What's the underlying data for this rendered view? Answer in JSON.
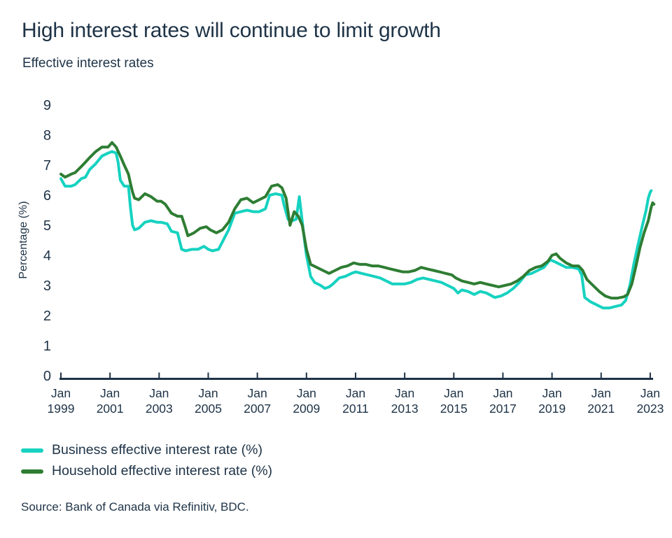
{
  "header": {
    "title": "High interest rates will continue to limit growth",
    "subtitle": "Effective interest rates"
  },
  "source": {
    "label": "Source: Bank of Canada via Refinitiv, BDC."
  },
  "legend": {
    "items": [
      {
        "label": "Business effective interest rate (%)",
        "color": "#16d2c0"
      },
      {
        "label": "Household effective interest rate (%)",
        "color": "#2e7d33"
      }
    ]
  },
  "colors": {
    "text": "#1e3347",
    "axis": "#1e3347",
    "background": "#ffffff"
  },
  "chart_data": {
    "type": "line",
    "title": "High interest rates will continue to limit growth",
    "subtitle": "Effective interest rates",
    "xlabel": "",
    "ylabel": "Percentage (%)",
    "ylim": [
      0,
      9
    ],
    "xlim_years": [
      1999.0,
      2023.3
    ],
    "grid": false,
    "legend_position": "bottom-left",
    "yticks": [
      0,
      1,
      2,
      3,
      4,
      5,
      6,
      7,
      8,
      9
    ],
    "xticks": [
      "Jan 1999",
      "Jan 2001",
      "Jan 2003",
      "Jan 2005",
      "Jan 2007",
      "Jan 2009",
      "Jan 2011",
      "Jan 2013",
      "Jan 2015",
      "Jan 2017",
      "Jan 2019",
      "Jan 2021",
      "Jan 2023"
    ],
    "series": [
      {
        "name": "Business effective interest rate (%)",
        "color": "#16d2c0",
        "points": [
          [
            1999.0,
            6.55
          ],
          [
            1999.17,
            6.3
          ],
          [
            1999.42,
            6.3
          ],
          [
            1999.58,
            6.35
          ],
          [
            1999.83,
            6.55
          ],
          [
            2000.0,
            6.6
          ],
          [
            2000.17,
            6.85
          ],
          [
            2000.42,
            7.05
          ],
          [
            2000.67,
            7.3
          ],
          [
            2000.92,
            7.4
          ],
          [
            2001.08,
            7.45
          ],
          [
            2001.25,
            7.4
          ],
          [
            2001.33,
            7.1
          ],
          [
            2001.42,
            6.5
          ],
          [
            2001.58,
            6.3
          ],
          [
            2001.75,
            6.3
          ],
          [
            2001.83,
            5.6
          ],
          [
            2001.92,
            5.0
          ],
          [
            2002.0,
            4.85
          ],
          [
            2002.17,
            4.9
          ],
          [
            2002.42,
            5.1
          ],
          [
            2002.67,
            5.15
          ],
          [
            2002.92,
            5.1
          ],
          [
            2003.08,
            5.1
          ],
          [
            2003.33,
            5.05
          ],
          [
            2003.5,
            4.8
          ],
          [
            2003.75,
            4.75
          ],
          [
            2003.92,
            4.2
          ],
          [
            2004.08,
            4.15
          ],
          [
            2004.33,
            4.2
          ],
          [
            2004.58,
            4.2
          ],
          [
            2004.83,
            4.3
          ],
          [
            2005.0,
            4.2
          ],
          [
            2005.17,
            4.15
          ],
          [
            2005.42,
            4.2
          ],
          [
            2005.58,
            4.45
          ],
          [
            2005.83,
            4.85
          ],
          [
            2006.08,
            5.4
          ],
          [
            2006.33,
            5.45
          ],
          [
            2006.58,
            5.5
          ],
          [
            2006.83,
            5.45
          ],
          [
            2007.08,
            5.45
          ],
          [
            2007.33,
            5.55
          ],
          [
            2007.5,
            6.0
          ],
          [
            2007.75,
            6.05
          ],
          [
            2008.0,
            6.0
          ],
          [
            2008.08,
            5.7
          ],
          [
            2008.25,
            5.2
          ],
          [
            2008.42,
            5.15
          ],
          [
            2008.58,
            5.2
          ],
          [
            2008.71,
            5.95
          ],
          [
            2008.79,
            5.4
          ],
          [
            2008.92,
            4.5
          ],
          [
            2009.0,
            4.0
          ],
          [
            2009.17,
            3.3
          ],
          [
            2009.33,
            3.1
          ],
          [
            2009.58,
            3.0
          ],
          [
            2009.75,
            2.9
          ],
          [
            2009.92,
            2.95
          ],
          [
            2010.08,
            3.05
          ],
          [
            2010.33,
            3.25
          ],
          [
            2010.58,
            3.3
          ],
          [
            2010.83,
            3.4
          ],
          [
            2011.0,
            3.45
          ],
          [
            2011.25,
            3.4
          ],
          [
            2011.5,
            3.35
          ],
          [
            2011.75,
            3.3
          ],
          [
            2012.0,
            3.25
          ],
          [
            2012.25,
            3.15
          ],
          [
            2012.5,
            3.05
          ],
          [
            2012.75,
            3.05
          ],
          [
            2013.0,
            3.05
          ],
          [
            2013.25,
            3.1
          ],
          [
            2013.5,
            3.2
          ],
          [
            2013.75,
            3.25
          ],
          [
            2014.0,
            3.2
          ],
          [
            2014.25,
            3.15
          ],
          [
            2014.5,
            3.1
          ],
          [
            2014.75,
            3.0
          ],
          [
            2015.0,
            2.9
          ],
          [
            2015.17,
            2.75
          ],
          [
            2015.33,
            2.85
          ],
          [
            2015.58,
            2.8
          ],
          [
            2015.83,
            2.7
          ],
          [
            2016.08,
            2.8
          ],
          [
            2016.33,
            2.75
          ],
          [
            2016.67,
            2.6
          ],
          [
            2016.92,
            2.65
          ],
          [
            2017.17,
            2.75
          ],
          [
            2017.42,
            2.9
          ],
          [
            2017.67,
            3.1
          ],
          [
            2017.92,
            3.35
          ],
          [
            2018.17,
            3.4
          ],
          [
            2018.42,
            3.5
          ],
          [
            2018.67,
            3.6
          ],
          [
            2018.92,
            3.85
          ],
          [
            2019.08,
            3.8
          ],
          [
            2019.33,
            3.7
          ],
          [
            2019.58,
            3.6
          ],
          [
            2019.83,
            3.6
          ],
          [
            2020.08,
            3.55
          ],
          [
            2020.21,
            3.35
          ],
          [
            2020.33,
            2.6
          ],
          [
            2020.58,
            2.45
          ],
          [
            2020.83,
            2.35
          ],
          [
            2021.08,
            2.25
          ],
          [
            2021.33,
            2.25
          ],
          [
            2021.58,
            2.3
          ],
          [
            2021.83,
            2.35
          ],
          [
            2022.0,
            2.5
          ],
          [
            2022.17,
            3.0
          ],
          [
            2022.33,
            3.7
          ],
          [
            2022.5,
            4.35
          ],
          [
            2022.67,
            4.95
          ],
          [
            2022.83,
            5.5
          ],
          [
            2022.92,
            5.9
          ],
          [
            2023.0,
            6.1
          ],
          [
            2023.04,
            6.15
          ]
        ]
      },
      {
        "name": "Household effective interest rate (%)",
        "color": "#2e7d33",
        "points": [
          [
            1999.0,
            6.7
          ],
          [
            1999.17,
            6.6
          ],
          [
            1999.42,
            6.7
          ],
          [
            1999.58,
            6.75
          ],
          [
            1999.83,
            6.95
          ],
          [
            2000.0,
            7.1
          ],
          [
            2000.17,
            7.25
          ],
          [
            2000.42,
            7.45
          ],
          [
            2000.67,
            7.6
          ],
          [
            2000.92,
            7.6
          ],
          [
            2001.08,
            7.75
          ],
          [
            2001.25,
            7.6
          ],
          [
            2001.42,
            7.3
          ],
          [
            2001.58,
            7.0
          ],
          [
            2001.75,
            6.7
          ],
          [
            2001.83,
            6.4
          ],
          [
            2001.92,
            6.1
          ],
          [
            2002.0,
            5.9
          ],
          [
            2002.17,
            5.85
          ],
          [
            2002.42,
            6.05
          ],
          [
            2002.67,
            5.95
          ],
          [
            2002.92,
            5.8
          ],
          [
            2003.08,
            5.8
          ],
          [
            2003.25,
            5.7
          ],
          [
            2003.5,
            5.4
          ],
          [
            2003.75,
            5.3
          ],
          [
            2003.92,
            5.3
          ],
          [
            2004.08,
            4.9
          ],
          [
            2004.17,
            4.65
          ],
          [
            2004.42,
            4.75
          ],
          [
            2004.67,
            4.9
          ],
          [
            2004.92,
            4.95
          ],
          [
            2005.08,
            4.85
          ],
          [
            2005.33,
            4.75
          ],
          [
            2005.58,
            4.85
          ],
          [
            2005.83,
            5.1
          ],
          [
            2006.08,
            5.55
          ],
          [
            2006.33,
            5.85
          ],
          [
            2006.58,
            5.9
          ],
          [
            2006.83,
            5.75
          ],
          [
            2007.08,
            5.85
          ],
          [
            2007.33,
            5.95
          ],
          [
            2007.58,
            6.3
          ],
          [
            2007.83,
            6.35
          ],
          [
            2008.0,
            6.25
          ],
          [
            2008.17,
            5.9
          ],
          [
            2008.33,
            5.0
          ],
          [
            2008.5,
            5.45
          ],
          [
            2008.67,
            5.3
          ],
          [
            2008.83,
            5.0
          ],
          [
            2009.0,
            4.2
          ],
          [
            2009.17,
            3.7
          ],
          [
            2009.42,
            3.6
          ],
          [
            2009.67,
            3.5
          ],
          [
            2009.92,
            3.4
          ],
          [
            2010.17,
            3.5
          ],
          [
            2010.42,
            3.6
          ],
          [
            2010.67,
            3.65
          ],
          [
            2010.92,
            3.75
          ],
          [
            2011.17,
            3.7
          ],
          [
            2011.42,
            3.7
          ],
          [
            2011.67,
            3.65
          ],
          [
            2011.92,
            3.65
          ],
          [
            2012.17,
            3.6
          ],
          [
            2012.42,
            3.55
          ],
          [
            2012.67,
            3.5
          ],
          [
            2012.92,
            3.45
          ],
          [
            2013.17,
            3.45
          ],
          [
            2013.42,
            3.5
          ],
          [
            2013.67,
            3.6
          ],
          [
            2013.92,
            3.55
          ],
          [
            2014.17,
            3.5
          ],
          [
            2014.42,
            3.45
          ],
          [
            2014.67,
            3.4
          ],
          [
            2014.92,
            3.35
          ],
          [
            2015.08,
            3.25
          ],
          [
            2015.33,
            3.15
          ],
          [
            2015.58,
            3.1
          ],
          [
            2015.83,
            3.05
          ],
          [
            2016.08,
            3.1
          ],
          [
            2016.33,
            3.05
          ],
          [
            2016.58,
            3.0
          ],
          [
            2016.83,
            2.95
          ],
          [
            2017.08,
            3.0
          ],
          [
            2017.33,
            3.05
          ],
          [
            2017.58,
            3.15
          ],
          [
            2017.83,
            3.3
          ],
          [
            2018.08,
            3.5
          ],
          [
            2018.33,
            3.6
          ],
          [
            2018.58,
            3.65
          ],
          [
            2018.83,
            3.8
          ],
          [
            2019.0,
            4.0
          ],
          [
            2019.17,
            4.05
          ],
          [
            2019.33,
            3.9
          ],
          [
            2019.58,
            3.75
          ],
          [
            2019.83,
            3.65
          ],
          [
            2020.08,
            3.65
          ],
          [
            2020.25,
            3.5
          ],
          [
            2020.42,
            3.2
          ],
          [
            2020.67,
            3.0
          ],
          [
            2020.92,
            2.8
          ],
          [
            2021.17,
            2.65
          ],
          [
            2021.42,
            2.58
          ],
          [
            2021.67,
            2.58
          ],
          [
            2021.92,
            2.62
          ],
          [
            2022.08,
            2.7
          ],
          [
            2022.25,
            3.05
          ],
          [
            2022.42,
            3.65
          ],
          [
            2022.58,
            4.25
          ],
          [
            2022.75,
            4.75
          ],
          [
            2022.92,
            5.15
          ],
          [
            2023.04,
            5.6
          ],
          [
            2023.1,
            5.75
          ],
          [
            2023.15,
            5.7
          ]
        ]
      }
    ]
  }
}
